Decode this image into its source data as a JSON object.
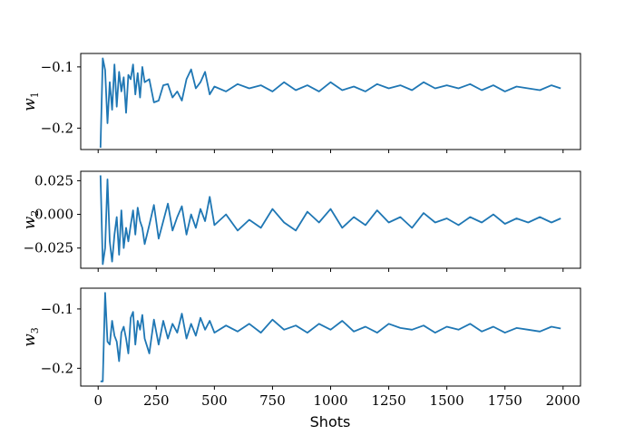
{
  "chart_data": [
    {
      "type": "line",
      "ylabel": "w",
      "ylabel_sub": "1",
      "xlabel": "",
      "xlim": [
        -75,
        2075
      ],
      "ylim": [
        -0.235,
        -0.078
      ],
      "yticks": [
        -0.1,
        -0.2
      ],
      "ytick_labels": [
        "−0.1",
        "−0.2"
      ],
      "xticks": [
        0,
        250,
        500,
        750,
        1000,
        1250,
        1500,
        1750,
        2000
      ],
      "xtick_labels": [],
      "color": "#1f77b4",
      "series": [
        {
          "x": [
            10,
            20,
            30,
            40,
            50,
            60,
            70,
            80,
            90,
            100,
            110,
            120,
            130,
            140,
            150,
            160,
            170,
            180,
            190,
            200,
            220,
            240,
            260,
            280,
            300,
            320,
            340,
            360,
            380,
            400,
            420,
            440,
            460,
            480,
            500,
            550,
            600,
            650,
            700,
            750,
            800,
            850,
            900,
            950,
            1000,
            1050,
            1100,
            1150,
            1200,
            1250,
            1300,
            1350,
            1400,
            1450,
            1500,
            1550,
            1600,
            1650,
            1700,
            1750,
            1800,
            1850,
            1900,
            1950,
            1990
          ],
          "y": [
            -0.232,
            -0.086,
            -0.105,
            -0.192,
            -0.125,
            -0.17,
            -0.096,
            -0.165,
            -0.108,
            -0.14,
            -0.117,
            -0.175,
            -0.113,
            -0.12,
            -0.096,
            -0.145,
            -0.11,
            -0.15,
            -0.1,
            -0.125,
            -0.12,
            -0.158,
            -0.155,
            -0.13,
            -0.128,
            -0.15,
            -0.14,
            -0.155,
            -0.12,
            -0.104,
            -0.135,
            -0.125,
            -0.108,
            -0.145,
            -0.132,
            -0.14,
            -0.128,
            -0.135,
            -0.13,
            -0.14,
            -0.125,
            -0.138,
            -0.13,
            -0.14,
            -0.125,
            -0.138,
            -0.132,
            -0.14,
            -0.128,
            -0.135,
            -0.13,
            -0.138,
            -0.125,
            -0.135,
            -0.13,
            -0.135,
            -0.128,
            -0.138,
            -0.13,
            -0.14,
            -0.132,
            -0.135,
            -0.138,
            -0.13,
            -0.135
          ]
        }
      ]
    },
    {
      "type": "line",
      "ylabel": "w",
      "ylabel_sub": "2",
      "xlabel": "",
      "xlim": [
        -75,
        2075
      ],
      "ylim": [
        -0.04,
        0.032
      ],
      "yticks": [
        0.025,
        0.0,
        -0.025
      ],
      "ytick_labels": [
        "0.025",
        "0.000",
        "−0.025"
      ],
      "xticks": [
        0,
        250,
        500,
        750,
        1000,
        1250,
        1500,
        1750,
        2000
      ],
      "xtick_labels": [],
      "color": "#1f77b4",
      "series": [
        {
          "x": [
            10,
            20,
            30,
            40,
            50,
            60,
            70,
            80,
            90,
            100,
            110,
            120,
            130,
            140,
            150,
            160,
            170,
            180,
            190,
            200,
            220,
            240,
            260,
            280,
            300,
            320,
            340,
            360,
            380,
            400,
            420,
            440,
            460,
            480,
            500,
            550,
            600,
            650,
            700,
            750,
            800,
            850,
            900,
            950,
            1000,
            1050,
            1100,
            1150,
            1200,
            1250,
            1300,
            1350,
            1400,
            1450,
            1500,
            1550,
            1600,
            1650,
            1700,
            1750,
            1800,
            1850,
            1900,
            1950,
            1990
          ],
          "y": [
            0.029,
            -0.037,
            -0.025,
            0.026,
            -0.02,
            -0.035,
            -0.015,
            -0.002,
            -0.03,
            0.003,
            -0.025,
            -0.01,
            -0.02,
            -0.008,
            0.003,
            -0.015,
            0.005,
            -0.005,
            -0.01,
            -0.022,
            -0.008,
            0.007,
            -0.018,
            -0.005,
            0.008,
            -0.012,
            -0.002,
            0.006,
            -0.015,
            0.0,
            -0.01,
            0.004,
            -0.005,
            0.013,
            -0.008,
            0.0,
            -0.012,
            -0.004,
            -0.01,
            0.004,
            -0.006,
            -0.012,
            0.002,
            -0.006,
            0.004,
            -0.01,
            -0.002,
            -0.008,
            0.003,
            -0.006,
            -0.002,
            -0.01,
            0.001,
            -0.006,
            -0.003,
            -0.008,
            -0.002,
            -0.006,
            0.0,
            -0.007,
            -0.003,
            -0.006,
            -0.002,
            -0.006,
            -0.003
          ]
        }
      ]
    },
    {
      "type": "line",
      "ylabel": "w",
      "ylabel_sub": "3",
      "xlabel": "Shots",
      "xlim": [
        -75,
        2075
      ],
      "ylim": [
        -0.23,
        -0.065
      ],
      "yticks": [
        -0.1,
        -0.2
      ],
      "ytick_labels": [
        "−0.1",
        "−0.2"
      ],
      "xticks": [
        0,
        250,
        500,
        750,
        1000,
        1250,
        1500,
        1750,
        2000
      ],
      "xtick_labels": [
        "0",
        "250",
        "500",
        "750",
        "1000",
        "1250",
        "1500",
        "1750",
        "2000"
      ],
      "color": "#1f77b4",
      "series": [
        {
          "x": [
            10,
            20,
            30,
            40,
            50,
            60,
            70,
            80,
            90,
            100,
            110,
            120,
            130,
            140,
            150,
            160,
            170,
            180,
            190,
            200,
            220,
            240,
            260,
            280,
            300,
            320,
            340,
            360,
            380,
            400,
            420,
            440,
            460,
            480,
            500,
            550,
            600,
            650,
            700,
            750,
            800,
            850,
            900,
            950,
            1000,
            1050,
            1100,
            1150,
            1200,
            1250,
            1300,
            1350,
            1400,
            1450,
            1500,
            1550,
            1600,
            1650,
            1700,
            1750,
            1800,
            1850,
            1900,
            1950,
            1990
          ],
          "y": [
            -0.222,
            -0.222,
            -0.073,
            -0.155,
            -0.16,
            -0.12,
            -0.145,
            -0.155,
            -0.188,
            -0.14,
            -0.13,
            -0.15,
            -0.175,
            -0.115,
            -0.105,
            -0.16,
            -0.12,
            -0.135,
            -0.11,
            -0.15,
            -0.175,
            -0.118,
            -0.16,
            -0.12,
            -0.15,
            -0.125,
            -0.14,
            -0.108,
            -0.15,
            -0.125,
            -0.145,
            -0.115,
            -0.135,
            -0.12,
            -0.14,
            -0.128,
            -0.138,
            -0.125,
            -0.14,
            -0.118,
            -0.135,
            -0.128,
            -0.14,
            -0.125,
            -0.135,
            -0.12,
            -0.138,
            -0.13,
            -0.14,
            -0.125,
            -0.132,
            -0.135,
            -0.128,
            -0.14,
            -0.13,
            -0.135,
            -0.125,
            -0.138,
            -0.13,
            -0.14,
            -0.132,
            -0.135,
            -0.138,
            -0.13,
            -0.133
          ]
        }
      ]
    }
  ]
}
